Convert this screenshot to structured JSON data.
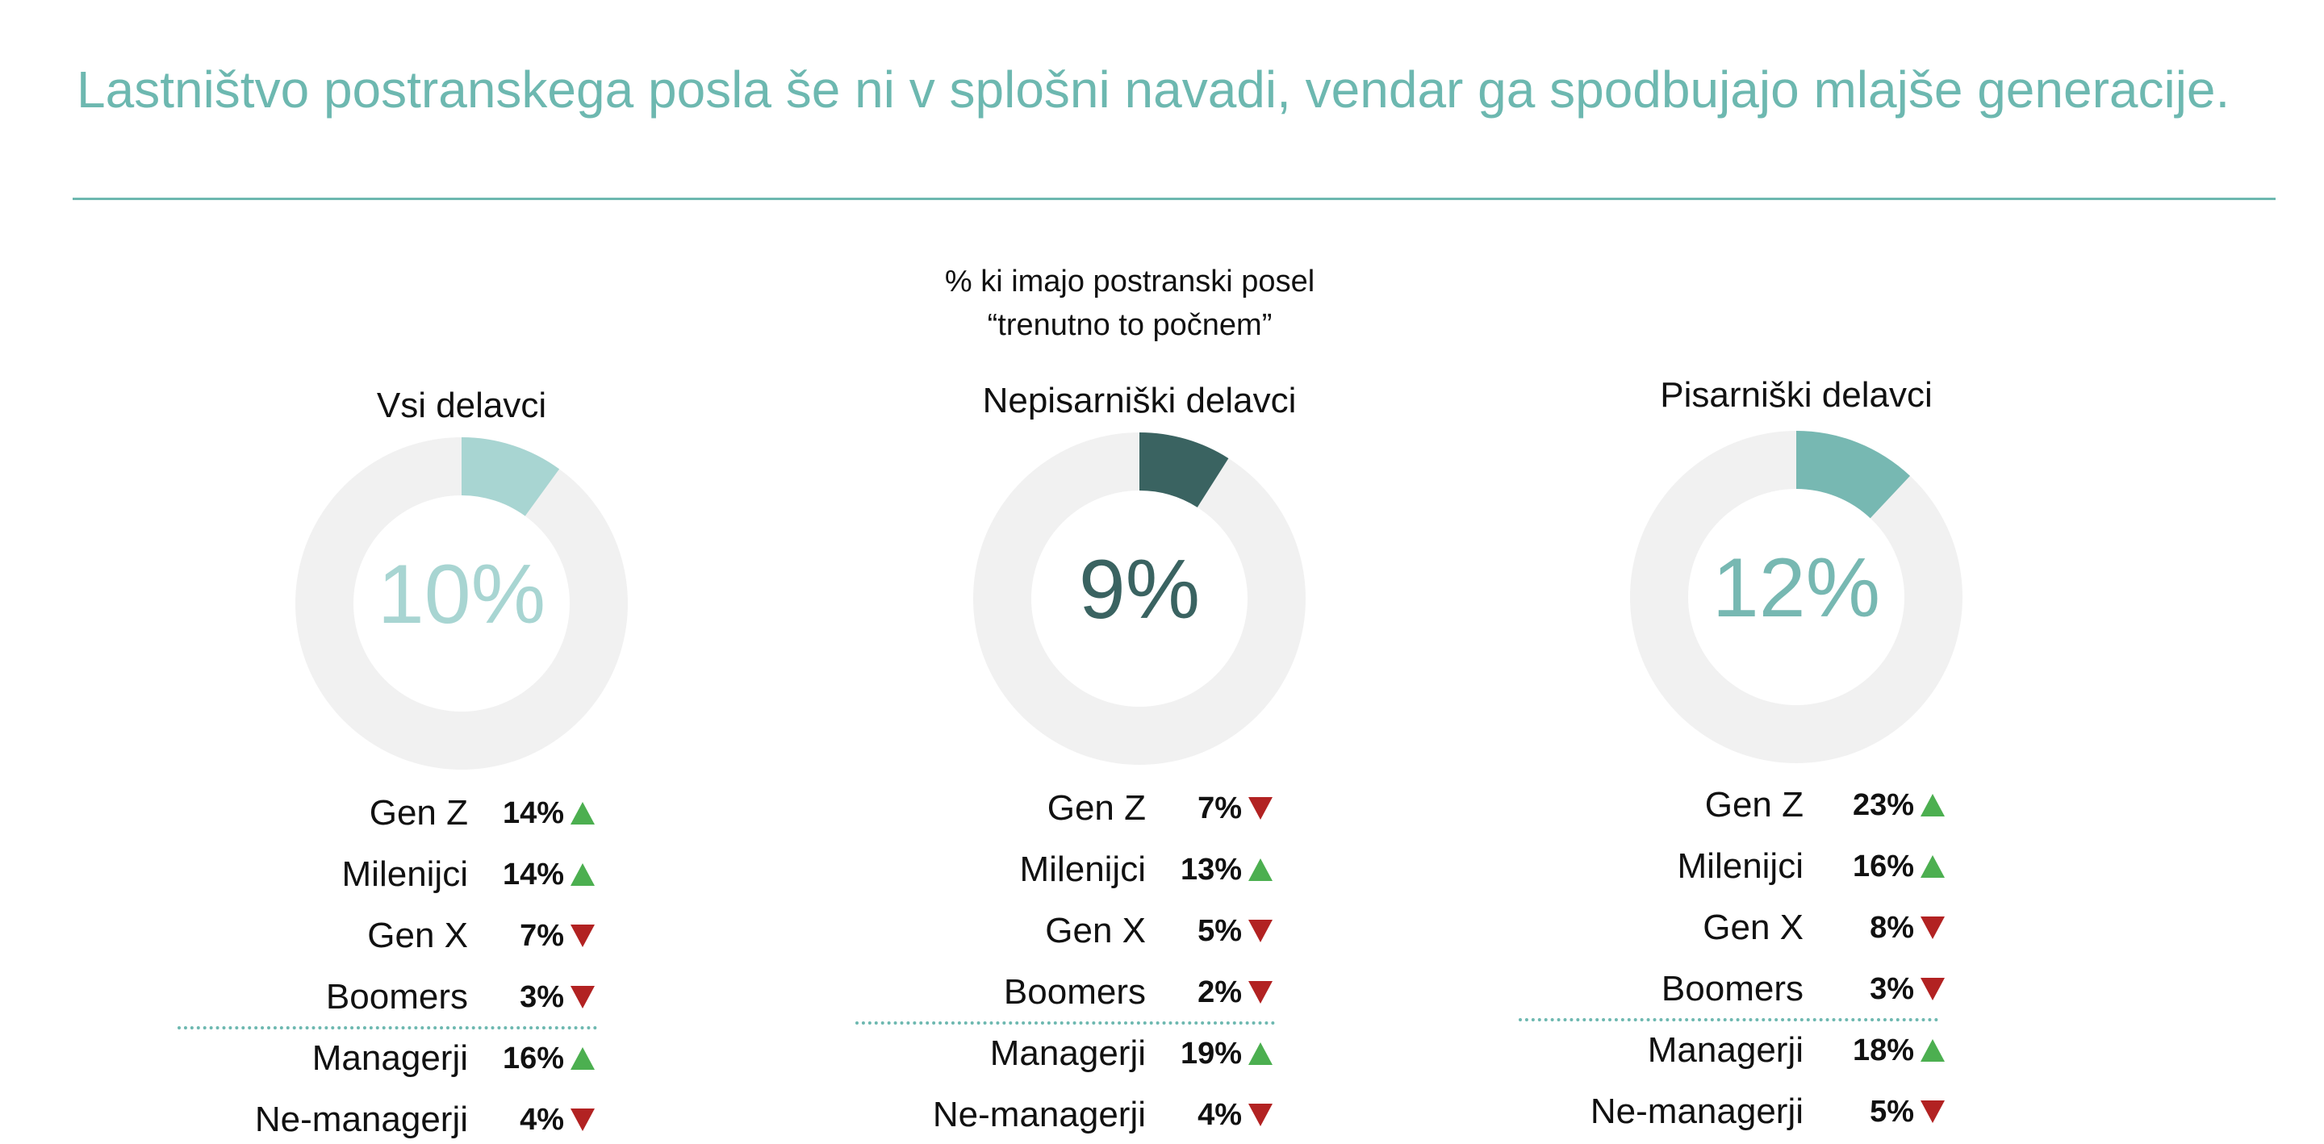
{
  "title": "Lastništvo postranskega posla še ni v splošni navadi, vendar ga spodbujajo mlajše generacije.",
  "subtitle_line1": "% ki imajo postranski posel",
  "subtitle_line2": "“trenutno to počnem”",
  "colors": {
    "title": "#6db8b0",
    "track": "#f1f1f1",
    "up": "#4caf50",
    "down": "#b22222",
    "divider": "#6db8b0"
  },
  "chart_data": [
    {
      "type": "donut",
      "title": "Vsi delavci",
      "value": 10,
      "value_label": "10%",
      "color": "#a8d5d2",
      "breakdown": [
        {
          "label": "Gen Z",
          "value": 14,
          "value_label": "14%",
          "trend": "up"
        },
        {
          "label": "Milenijci",
          "value": 14,
          "value_label": "14%",
          "trend": "up"
        },
        {
          "label": "Gen X",
          "value": 7,
          "value_label": "7%",
          "trend": "down"
        },
        {
          "label": "Boomers",
          "value": 3,
          "value_label": "3%",
          "trend": "down"
        },
        {
          "label": "Managerji",
          "value": 16,
          "value_label": "16%",
          "trend": "up"
        },
        {
          "label": "Ne-managerji",
          "value": 4,
          "value_label": "4%",
          "trend": "down"
        }
      ]
    },
    {
      "type": "donut",
      "title": "Nepisarniški delavci",
      "value": 9,
      "value_label": "9%",
      "color": "#3a6361",
      "breakdown": [
        {
          "label": "Gen Z",
          "value": 7,
          "value_label": "7%",
          "trend": "down"
        },
        {
          "label": "Milenijci",
          "value": 13,
          "value_label": "13%",
          "trend": "up"
        },
        {
          "label": "Gen X",
          "value": 5,
          "value_label": "5%",
          "trend": "down"
        },
        {
          "label": "Boomers",
          "value": 2,
          "value_label": "2%",
          "trend": "down"
        },
        {
          "label": "Managerji",
          "value": 19,
          "value_label": "19%",
          "trend": "up"
        },
        {
          "label": "Ne-managerji",
          "value": 4,
          "value_label": "4%",
          "trend": "down"
        }
      ]
    },
    {
      "type": "donut",
      "title": "Pisarniški delavci",
      "value": 12,
      "value_label": "12%",
      "color": "#77b8b2",
      "breakdown": [
        {
          "label": "Gen Z",
          "value": 23,
          "value_label": "23%",
          "trend": "up"
        },
        {
          "label": "Milenijci",
          "value": 16,
          "value_label": "16%",
          "trend": "up"
        },
        {
          "label": "Gen X",
          "value": 8,
          "value_label": "8%",
          "trend": "down"
        },
        {
          "label": "Boomers",
          "value": 3,
          "value_label": "3%",
          "trend": "down"
        },
        {
          "label": "Managerji",
          "value": 18,
          "value_label": "18%",
          "trend": "up"
        },
        {
          "label": "Ne-managerji",
          "value": 5,
          "value_label": "5%",
          "trend": "down"
        }
      ]
    }
  ]
}
